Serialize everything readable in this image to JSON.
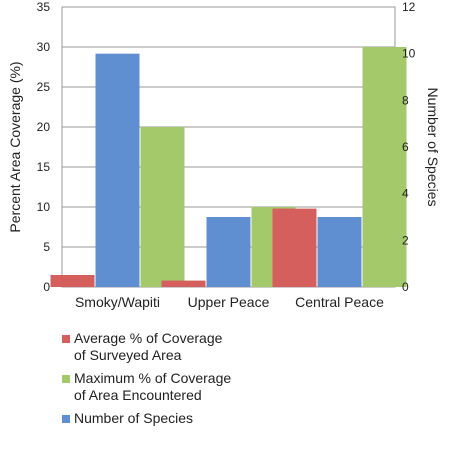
{
  "chart_data": {
    "type": "bar",
    "categories": [
      "Smoky/Wapiti",
      "Upper Peace",
      "Central Peace"
    ],
    "series": [
      {
        "name": "Average % of Coverage of Surveyed Area",
        "axis": "left",
        "values": [
          1.5,
          0.8,
          9.8
        ],
        "color": "#d45f5c"
      },
      {
        "name": "Number of Species",
        "axis": "right",
        "values": [
          10,
          3,
          3
        ],
        "color": "#5f8fd0"
      },
      {
        "name": "Maximum % of Coverage of Area Encountered",
        "axis": "left",
        "values": [
          20,
          10,
          30
        ],
        "color": "#a3c96b"
      }
    ],
    "ylabel": "Percent Area Coverage (%)",
    "y2label": "Number of Species",
    "ylim": [
      0,
      35
    ],
    "yticks": [
      0,
      5,
      10,
      15,
      20,
      25,
      30,
      35
    ],
    "y2lim": [
      0,
      12
    ],
    "y2ticks": [
      0,
      2,
      4,
      6,
      8,
      10,
      12
    ],
    "grid": true,
    "legend_position": "bottom-left"
  },
  "legend": [
    {
      "label": "Average % of Coverage of Surveyed Area",
      "color": "#d45f5c"
    },
    {
      "label": "Maximum % of Coverage of Area Encountered",
      "color": "#a3c96b"
    },
    {
      "label": "Number of Species",
      "color": "#5f8fd0"
    }
  ]
}
